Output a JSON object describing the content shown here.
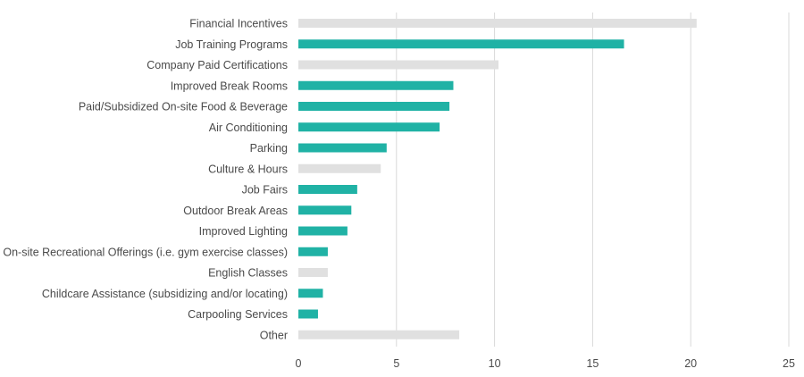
{
  "chart_data": {
    "type": "bar",
    "orientation": "horizontal",
    "title": "",
    "xlabel": "",
    "ylabel": "",
    "xlim": [
      0,
      25
    ],
    "xticks": [
      0,
      5,
      10,
      15,
      20,
      25
    ],
    "grid": "vertical",
    "legend": "none",
    "colors": {
      "highlight": "#20b2a5",
      "muted": "#e0e0e0"
    },
    "categories": [
      "Financial Incentives",
      "Job Training Programs",
      "Company Paid Certifications",
      "Improved Break Rooms",
      "Paid/Subsidized On-site Food & Beverage",
      "Air Conditioning",
      "Parking",
      "Culture & Hours",
      "Job Fairs",
      "Outdoor Break Areas",
      "Improved Lighting",
      "On-site Recreational Offerings (i.e. gym exercise classes)",
      "English Classes",
      "Childcare Assistance (subsidizing and/or locating)",
      "Carpooling Services",
      "Other"
    ],
    "values": [
      20.3,
      16.6,
      10.2,
      7.9,
      7.7,
      7.2,
      4.5,
      4.2,
      3.0,
      2.7,
      2.5,
      1.5,
      1.5,
      1.25,
      1.0,
      8.2
    ],
    "highlighted": [
      false,
      true,
      false,
      true,
      true,
      true,
      true,
      false,
      true,
      true,
      true,
      true,
      false,
      true,
      true,
      false
    ]
  }
}
